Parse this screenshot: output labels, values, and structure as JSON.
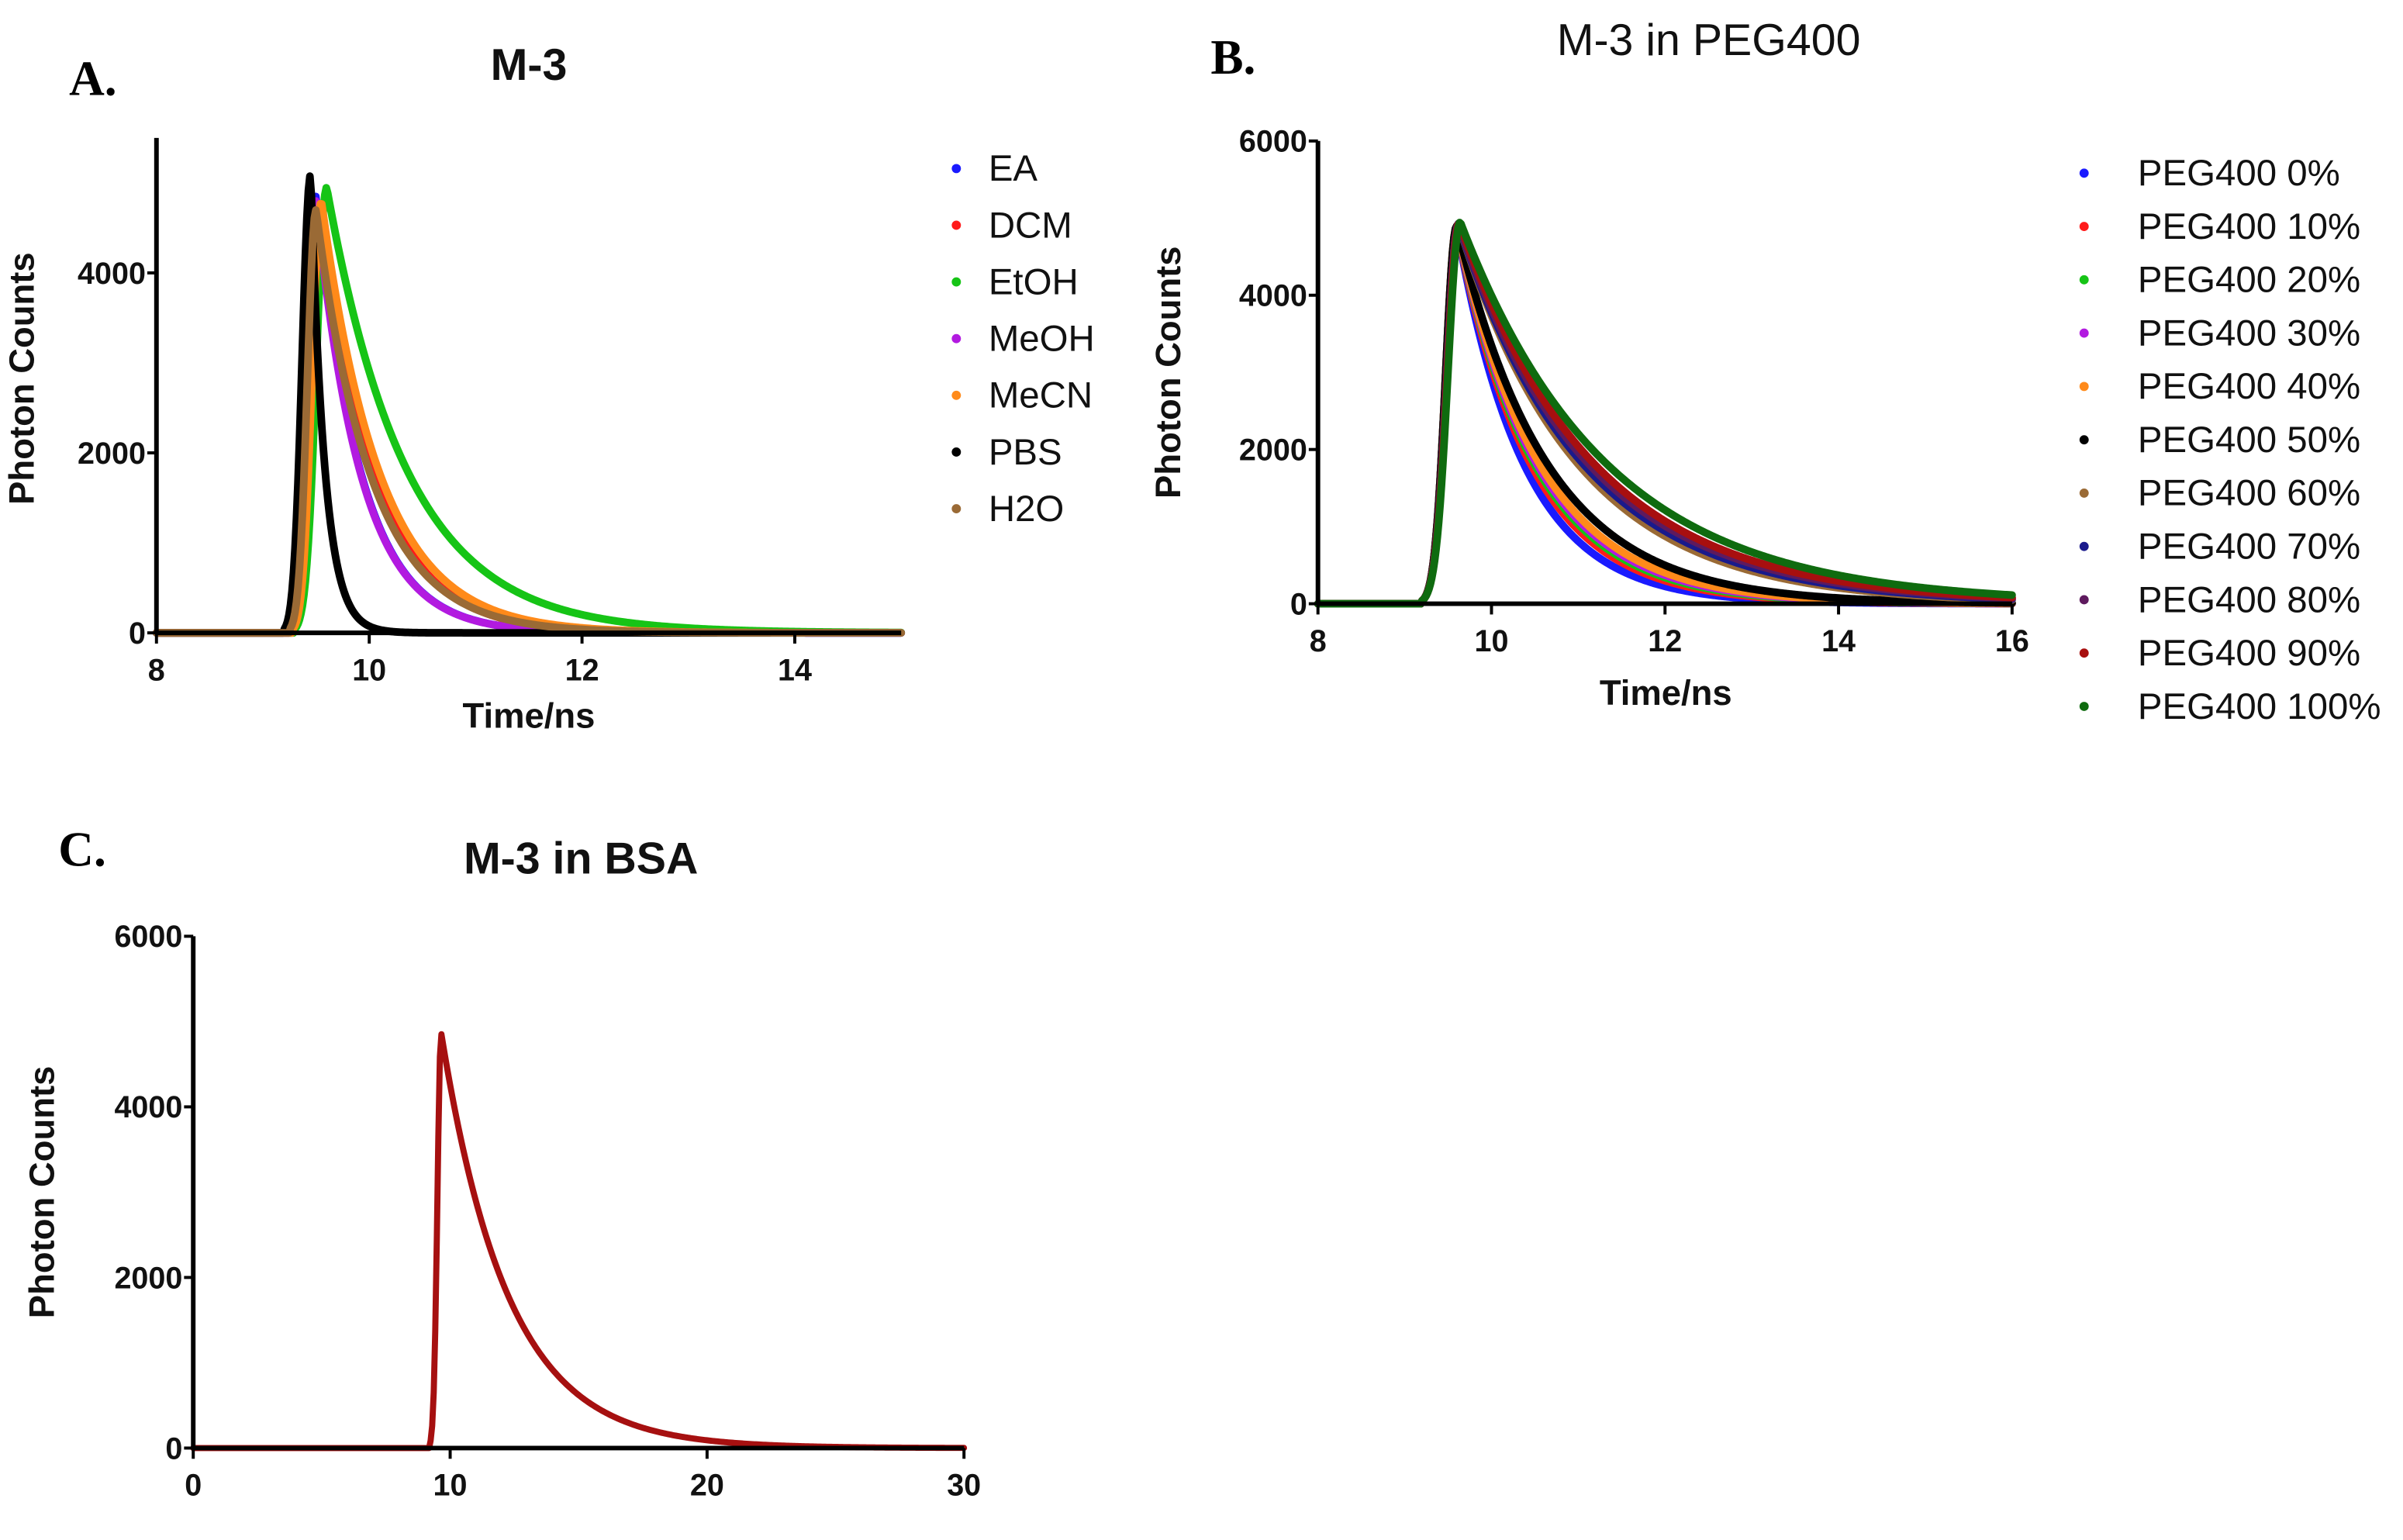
{
  "chart_data": [
    {
      "id": "A",
      "panel_label": "A.",
      "type": "line",
      "title": "M-3",
      "xlabel": "Time/ns",
      "ylabel": "Photon Counts",
      "xlim": [
        8,
        15
      ],
      "ylim": [
        0,
        5500
      ],
      "xticks": [
        8,
        10,
        12,
        14
      ],
      "yticks": [
        0,
        2000,
        4000
      ],
      "legend_position": "right",
      "series": [
        {
          "name": "EA",
          "color": "#1a1aff",
          "onset_ns": 9.25,
          "peak_ns": 9.5,
          "peak_counts": 4850,
          "decay_ns": 0.42
        },
        {
          "name": "DCM",
          "color": "#ff1a1a",
          "onset_ns": 9.28,
          "peak_ns": 9.55,
          "peak_counts": 4800,
          "decay_ns": 0.5
        },
        {
          "name": "EtOH",
          "color": "#16c416",
          "onset_ns": 9.3,
          "peak_ns": 9.6,
          "peak_counts": 4950,
          "decay_ns": 0.75
        },
        {
          "name": "MeOH",
          "color": "#b21ae0",
          "onset_ns": 9.25,
          "peak_ns": 9.5,
          "peak_counts": 4800,
          "decay_ns": 0.42
        },
        {
          "name": "MeCN",
          "color": "#ff8a1a",
          "onset_ns": 9.28,
          "peak_ns": 9.55,
          "peak_counts": 4800,
          "decay_ns": 0.55
        },
        {
          "name": "PBS",
          "color": "#000000",
          "onset_ns": 9.2,
          "peak_ns": 9.45,
          "peak_counts": 5100,
          "decay_ns": 0.13
        },
        {
          "name": "H2O",
          "color": "#9a6a35",
          "onset_ns": 9.25,
          "peak_ns": 9.5,
          "peak_counts": 4700,
          "decay_ns": 0.52
        }
      ]
    },
    {
      "id": "B",
      "panel_label": "B.",
      "type": "line",
      "title": "M-3 in PEG400",
      "xlabel": "Time/ns",
      "ylabel": "Photon Counts",
      "xlim": [
        8,
        16
      ],
      "ylim": [
        0,
        6000
      ],
      "xticks": [
        8,
        10,
        12,
        14,
        16
      ],
      "yticks": [
        0,
        2000,
        4000,
        6000
      ],
      "legend_position": "right",
      "series": [
        {
          "name": "PEG400 0%",
          "color": "#1a1aff",
          "onset_ns": 9.2,
          "peak_ns": 9.6,
          "peak_counts": 4880,
          "decay_ns": 0.78
        },
        {
          "name": "PEG400 10%",
          "color": "#ff1a1a",
          "onset_ns": 9.2,
          "peak_ns": 9.6,
          "peak_counts": 4880,
          "decay_ns": 0.86
        },
        {
          "name": "PEG400 20%",
          "color": "#16c416",
          "onset_ns": 9.2,
          "peak_ns": 9.6,
          "peak_counts": 4890,
          "decay_ns": 0.9
        },
        {
          "name": "PEG400 30%",
          "color": "#b21ae0",
          "onset_ns": 9.2,
          "peak_ns": 9.6,
          "peak_counts": 4890,
          "decay_ns": 0.93
        },
        {
          "name": "PEG400 40%",
          "color": "#ff8a1a",
          "onset_ns": 9.2,
          "peak_ns": 9.6,
          "peak_counts": 4900,
          "decay_ns": 0.96
        },
        {
          "name": "PEG400 50%",
          "color": "#000000",
          "onset_ns": 9.2,
          "peak_ns": 9.6,
          "peak_counts": 4900,
          "decay_ns": 1.05
        },
        {
          "name": "PEG400 60%",
          "color": "#9a6a35",
          "onset_ns": 9.2,
          "peak_ns": 9.62,
          "peak_counts": 4920,
          "decay_ns": 1.38
        },
        {
          "name": "PEG400 70%",
          "color": "#1a1a8c",
          "onset_ns": 9.2,
          "peak_ns": 9.62,
          "peak_counts": 4920,
          "decay_ns": 1.44
        },
        {
          "name": "PEG400 80%",
          "color": "#5e1a5e",
          "onset_ns": 9.2,
          "peak_ns": 9.62,
          "peak_counts": 4930,
          "decay_ns": 1.5
        },
        {
          "name": "PEG400 90%",
          "color": "#a80f0f",
          "onset_ns": 9.2,
          "peak_ns": 9.63,
          "peak_counts": 4940,
          "decay_ns": 1.55
        },
        {
          "name": "PEG400 100%",
          "color": "#0f6b0f",
          "onset_ns": 9.2,
          "peak_ns": 9.64,
          "peak_counts": 4950,
          "decay_ns": 1.68
        }
      ]
    },
    {
      "id": "C",
      "panel_label": "C.",
      "type": "line",
      "title": "M-3 in BSA",
      "xlabel": "",
      "ylabel": "Photon Counts",
      "xlim": [
        0,
        30
      ],
      "ylim": [
        0,
        6000
      ],
      "xticks": [
        0,
        10,
        20,
        30
      ],
      "yticks": [
        0,
        2000,
        4000,
        6000
      ],
      "legend_position": "none",
      "series": [
        {
          "name": "BSA",
          "color": "#a61010",
          "onset_ns": 9.2,
          "peak_ns": 9.65,
          "peak_counts": 4870,
          "decay_ns": 2.6
        }
      ]
    }
  ]
}
